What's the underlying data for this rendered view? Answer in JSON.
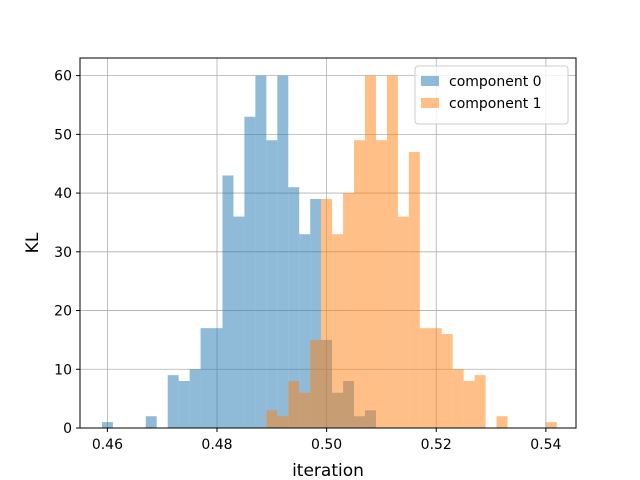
{
  "chart_data": {
    "type": "bar",
    "subtype": "overlapping-histogram",
    "title": "",
    "xlabel": "iteration",
    "ylabel": "KL",
    "xlim": [
      0.455,
      0.5455
    ],
    "ylim": [
      0,
      63
    ],
    "xticks": [
      0.46,
      0.48,
      0.5,
      0.52,
      0.54
    ],
    "xtick_labels": [
      "0.46",
      "0.48",
      "0.50",
      "0.52",
      "0.54"
    ],
    "yticks": [
      0,
      10,
      20,
      30,
      40,
      50,
      60
    ],
    "ytick_labels": [
      "0",
      "10",
      "20",
      "30",
      "40",
      "50",
      "60"
    ],
    "grid": true,
    "legend_position": "top-right",
    "series": [
      {
        "name": "component 0",
        "color": "#1f77b4",
        "alpha": 0.5,
        "bins": [
          [
            0.459,
            0.461,
            1
          ],
          [
            0.467,
            0.469,
            2
          ],
          [
            0.471,
            0.473,
            9
          ],
          [
            0.473,
            0.475,
            8
          ],
          [
            0.475,
            0.477,
            10
          ],
          [
            0.477,
            0.481,
            17
          ],
          [
            0.481,
            0.483,
            43
          ],
          [
            0.483,
            0.485,
            36
          ],
          [
            0.485,
            0.487,
            53
          ],
          [
            0.487,
            0.489,
            60
          ],
          [
            0.489,
            0.491,
            49
          ],
          [
            0.491,
            0.493,
            60
          ],
          [
            0.493,
            0.495,
            41
          ],
          [
            0.495,
            0.497,
            33
          ],
          [
            0.497,
            0.499,
            39
          ],
          [
            0.499,
            0.501,
            15
          ],
          [
            0.501,
            0.503,
            6
          ],
          [
            0.503,
            0.505,
            8
          ],
          [
            0.505,
            0.507,
            2
          ],
          [
            0.507,
            0.509,
            3
          ]
        ]
      },
      {
        "name": "component 1",
        "color": "#ff7f0e",
        "alpha": 0.5,
        "bins": [
          [
            0.489,
            0.491,
            3
          ],
          [
            0.491,
            0.493,
            2
          ],
          [
            0.493,
            0.495,
            8
          ],
          [
            0.495,
            0.497,
            6
          ],
          [
            0.497,
            0.499,
            15
          ],
          [
            0.499,
            0.501,
            39
          ],
          [
            0.501,
            0.503,
            33
          ],
          [
            0.503,
            0.505,
            40
          ],
          [
            0.505,
            0.507,
            49
          ],
          [
            0.507,
            0.509,
            60
          ],
          [
            0.509,
            0.511,
            49
          ],
          [
            0.511,
            0.513,
            60
          ],
          [
            0.513,
            0.515,
            36
          ],
          [
            0.515,
            0.517,
            47
          ],
          [
            0.517,
            0.519,
            17
          ],
          [
            0.519,
            0.521,
            17
          ],
          [
            0.521,
            0.523,
            16
          ],
          [
            0.523,
            0.525,
            10
          ],
          [
            0.525,
            0.527,
            8
          ],
          [
            0.527,
            0.529,
            9
          ],
          [
            0.531,
            0.533,
            2
          ],
          [
            0.54,
            0.542,
            1
          ]
        ]
      }
    ]
  }
}
